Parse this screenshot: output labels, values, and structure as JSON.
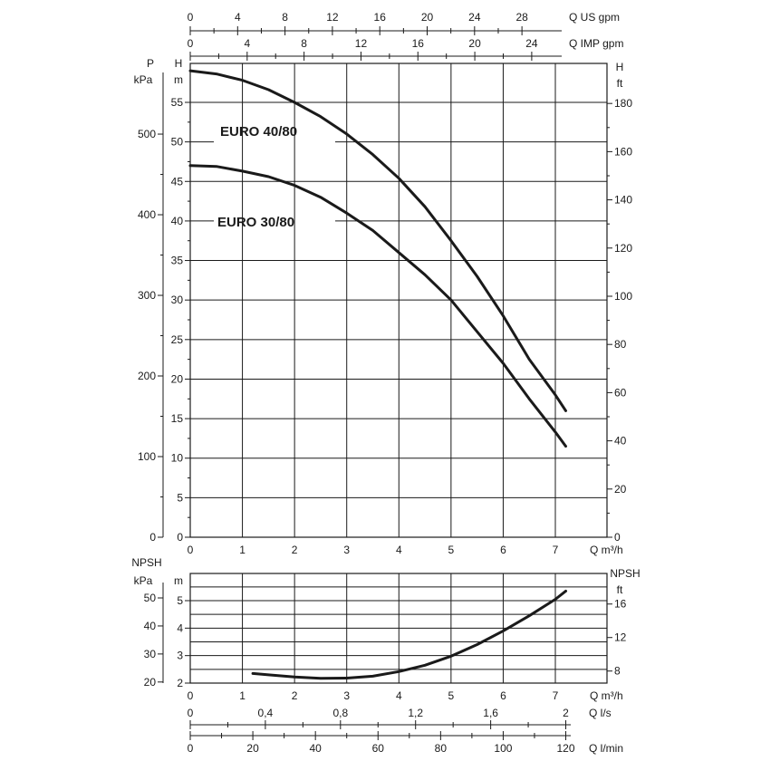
{
  "chart_data": [
    {
      "type": "line",
      "title": "",
      "series": [
        {
          "name": "EURO 40/80",
          "x": [
            0,
            0.5,
            1,
            1.5,
            2,
            2.5,
            3,
            3.5,
            4,
            4.5,
            5,
            5.5,
            6,
            6.5,
            7,
            7.2
          ],
          "y": [
            59,
            58.6,
            57.8,
            56.6,
            55,
            53.2,
            51,
            48.4,
            45.4,
            41.8,
            37.5,
            33,
            28,
            22.5,
            18,
            16
          ]
        },
        {
          "name": "EURO 30/80",
          "x": [
            0,
            0.5,
            1,
            1.5,
            2,
            2.5,
            3,
            3.5,
            4,
            4.5,
            5,
            5.5,
            6,
            6.5,
            7,
            7.2
          ],
          "y": [
            47,
            46.9,
            46.3,
            45.6,
            44.5,
            43,
            41,
            38.8,
            36,
            33.2,
            30,
            26,
            22,
            17.5,
            13.3,
            11.5
          ]
        }
      ],
      "xlim": [
        0,
        7.5
      ],
      "ylim": [
        0,
        60
      ],
      "grid": true,
      "axes": {
        "top_us_gpm": {
          "label": "Q US gpm",
          "ticks": [
            "0",
            "4",
            "8",
            "12",
            "16",
            "20",
            "24",
            "28"
          ],
          "values": [
            0,
            4,
            8,
            12,
            16,
            20,
            24,
            28
          ]
        },
        "top_imp_gpm": {
          "label": "Q IMP gpm",
          "ticks": [
            "0",
            "4",
            "8",
            "12",
            "16",
            "20",
            "24"
          ],
          "values": [
            0,
            4,
            8,
            12,
            16,
            20,
            24
          ]
        },
        "bottom_m3h": {
          "label": "Q m³/h",
          "ticks": [
            "0",
            "1",
            "2",
            "3",
            "4",
            "5",
            "6",
            "7"
          ],
          "values": [
            0,
            1,
            2,
            3,
            4,
            5,
            6,
            7
          ]
        },
        "left_kpa": {
          "label_top": "P",
          "label_bottom": "kPa",
          "ticks": [
            "0",
            "100",
            "200",
            "300",
            "400",
            "500"
          ],
          "values": [
            0,
            100,
            200,
            300,
            400,
            500
          ]
        },
        "left_m": {
          "label_top": "H",
          "label_bottom": "m",
          "ticks": [
            "0",
            "5",
            "10",
            "15",
            "20",
            "25",
            "30",
            "35",
            "40",
            "45",
            "50",
            "55"
          ],
          "values": [
            0,
            5,
            10,
            15,
            20,
            25,
            30,
            35,
            40,
            45,
            50,
            55
          ]
        },
        "right_ft": {
          "label_top": "H",
          "label_bottom": "ft",
          "ticks": [
            "0",
            "20",
            "40",
            "60",
            "80",
            "100",
            "120",
            "140",
            "160",
            "180"
          ],
          "values": [
            0,
            20,
            40,
            60,
            80,
            100,
            120,
            140,
            160,
            180
          ]
        }
      }
    },
    {
      "type": "line",
      "title": "",
      "series": [
        {
          "name": "",
          "x": [
            1.2,
            1.5,
            2,
            2.5,
            3,
            3.5,
            4,
            4.5,
            5,
            5.5,
            6,
            6.5,
            7,
            7.2
          ],
          "y": [
            2.35,
            2.3,
            2.22,
            2.17,
            2.18,
            2.25,
            2.42,
            2.65,
            2.98,
            3.4,
            3.9,
            4.45,
            5.05,
            5.35
          ]
        }
      ],
      "xlim": [
        0,
        7.5
      ],
      "ylim": [
        2,
        5.5
      ],
      "grid": true,
      "axes": {
        "left_kpa": {
          "label_top": "NPSH",
          "label_bottom": "kPa",
          "ticks": [
            "20",
            "30",
            "40",
            "50"
          ],
          "values": [
            20,
            30,
            40,
            50
          ]
        },
        "left_m": {
          "label_bottom": "m",
          "ticks": [
            "2",
            "3",
            "4",
            "5"
          ],
          "values": [
            2,
            3,
            4,
            5
          ]
        },
        "right_ft": {
          "label_top": "NPSH",
          "label_bottom": "ft",
          "ticks": [
            "8",
            "12",
            "16"
          ],
          "values": [
            8,
            12,
            16
          ]
        },
        "bottom_m3h": {
          "label": "Q m³/h",
          "ticks": [
            "0",
            "1",
            "2",
            "3",
            "4",
            "5",
            "6",
            "7"
          ],
          "values": [
            0,
            1,
            2,
            3,
            4,
            5,
            6,
            7
          ]
        },
        "bottom_ls": {
          "label": "Q l/s",
          "ticks": [
            "0",
            "0,4",
            "0,8",
            "1,2",
            "1,6",
            "2"
          ],
          "values": [
            0,
            0.4,
            0.8,
            1.2,
            1.6,
            2.0
          ]
        },
        "bottom_lmin": {
          "label": "Q l/min",
          "ticks": [
            "0",
            "20",
            "40",
            "60",
            "80",
            "100",
            "120"
          ],
          "values": [
            0,
            20,
            40,
            60,
            80,
            100,
            120
          ]
        }
      }
    }
  ],
  "colors": {
    "curve": "#1a1a1a",
    "grid": "#1a1a1a",
    "text": "#1a1a1a"
  }
}
